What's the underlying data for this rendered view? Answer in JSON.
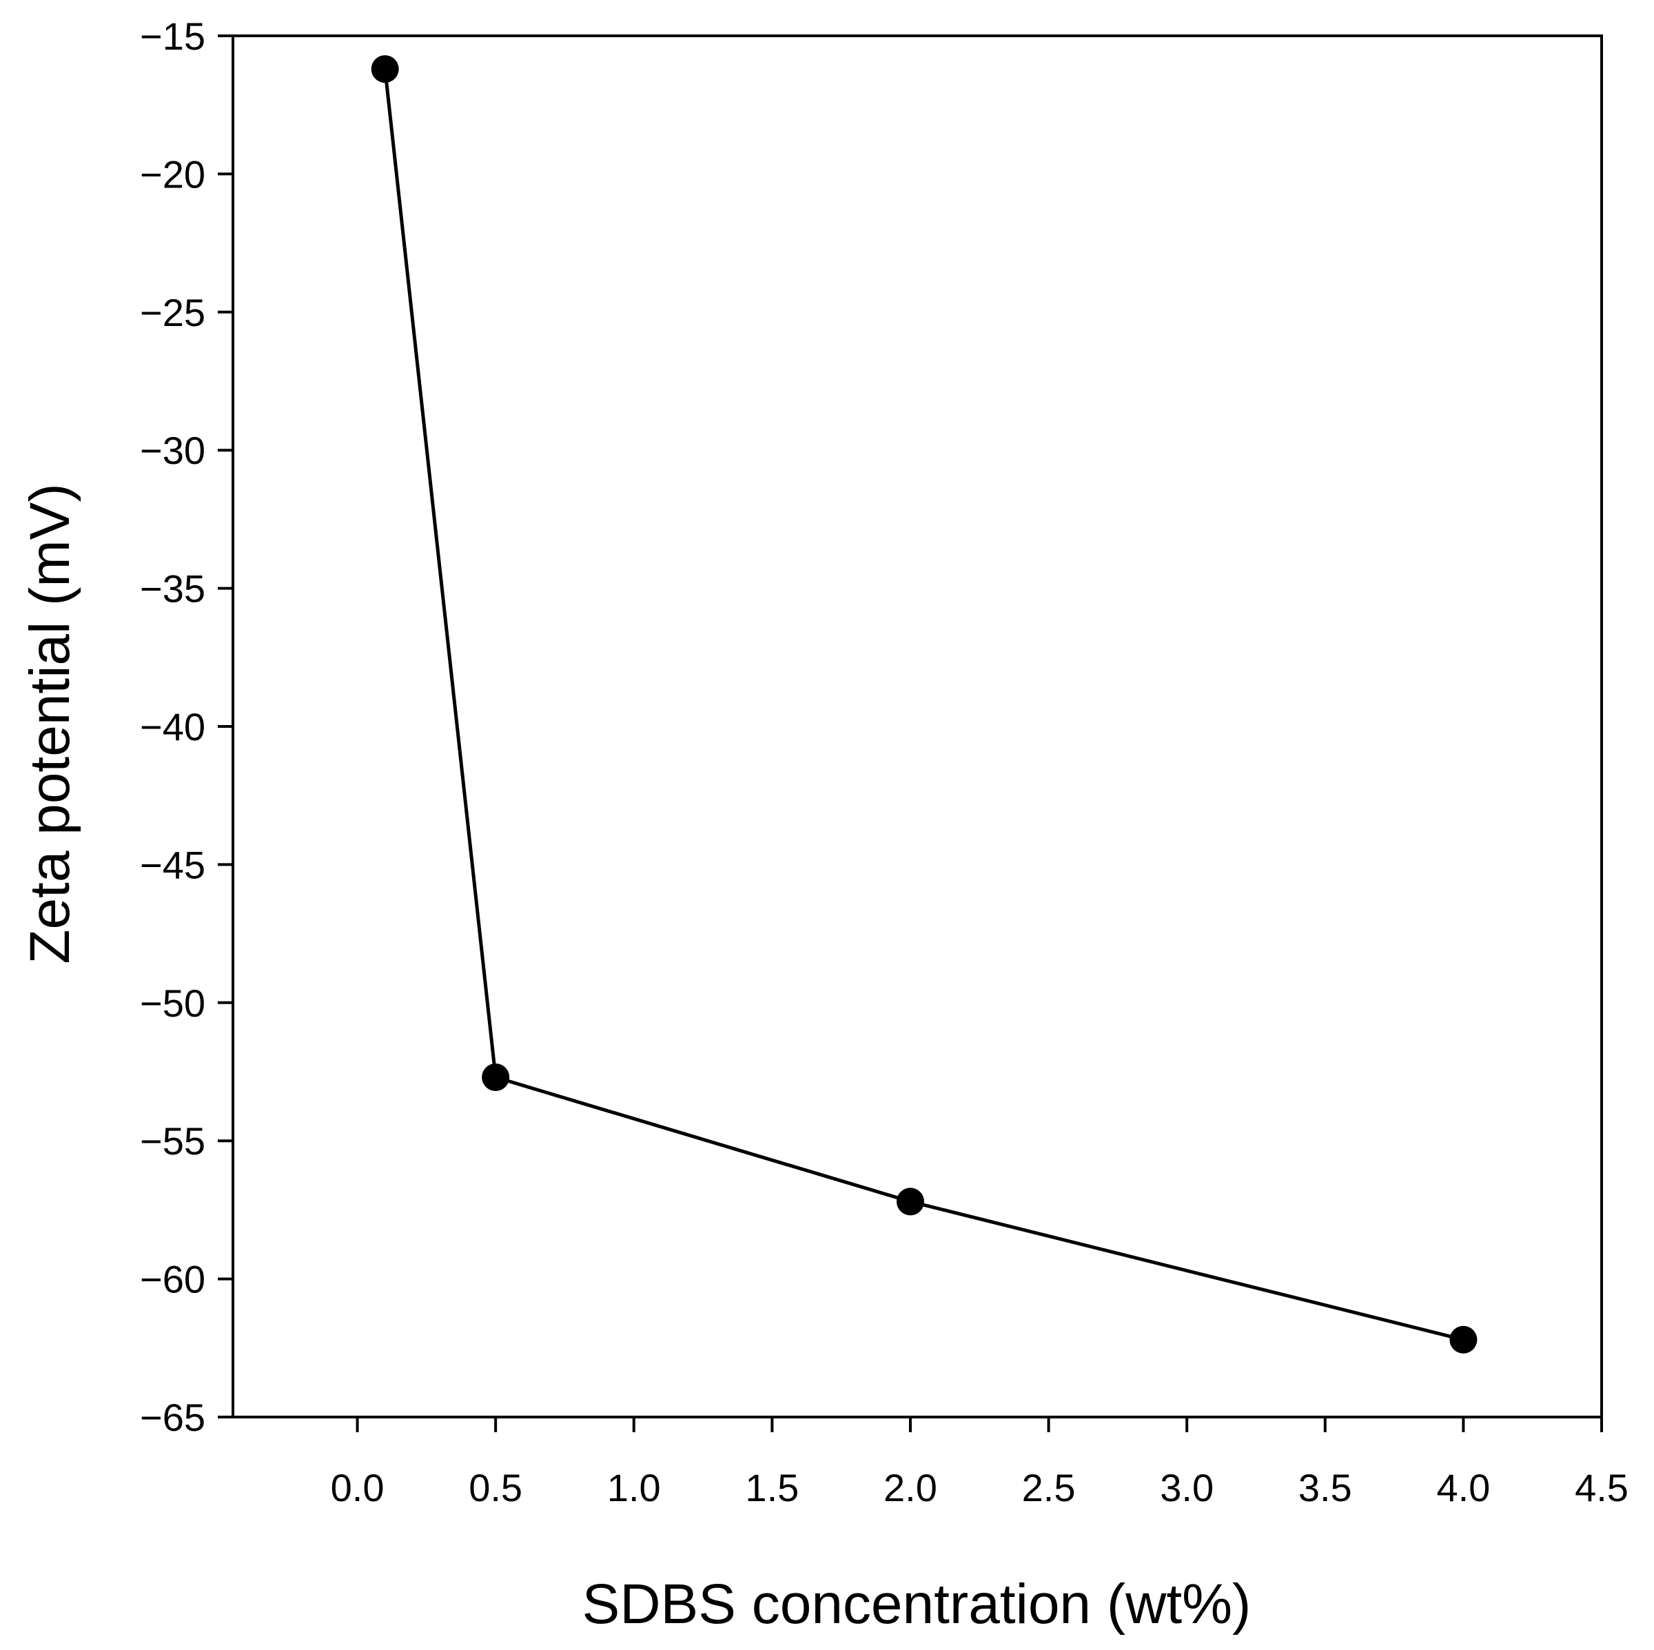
{
  "chart_data": {
    "type": "line",
    "title": "",
    "xlabel": "SDBS concentration (wt%)",
    "ylabel": "Zeta potential (mV)",
    "xlim": [
      -0.45,
      4.5
    ],
    "ylim": [
      -65,
      -15
    ],
    "xticks": [
      0.0,
      0.5,
      1.0,
      1.5,
      2.0,
      2.5,
      3.0,
      3.5,
      4.0,
      4.5
    ],
    "xtick_labels": [
      "0.0",
      "0.5",
      "1.0",
      "1.5",
      "2.0",
      "2.5",
      "3.0",
      "3.5",
      "4.0",
      "4.5"
    ],
    "yticks": [
      -15,
      -20,
      -25,
      -30,
      -35,
      -40,
      -45,
      -50,
      -55,
      -60,
      -65
    ],
    "ytick_labels": [
      "−15",
      "−20",
      "−25",
      "−30",
      "−35",
      "−40",
      "−45",
      "−50",
      "−55",
      "−60",
      "−65"
    ],
    "grid": false,
    "series": [
      {
        "name": "Zeta potential",
        "marker": "filled-circle",
        "color": "#000000",
        "x": [
          0.1,
          0.5,
          2.0,
          4.0
        ],
        "y": [
          -16.2,
          -52.7,
          -57.2,
          -62.2
        ]
      }
    ]
  }
}
